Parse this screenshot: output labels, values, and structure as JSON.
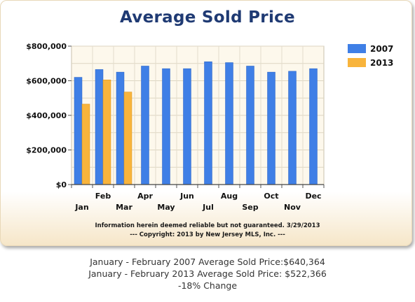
{
  "chart_data": {
    "type": "bar",
    "title": "Average Sold Price",
    "categories": [
      "Jan",
      "Feb",
      "Mar",
      "Apr",
      "May",
      "Jun",
      "Jul",
      "Aug",
      "Sep",
      "Oct",
      "Nov",
      "Dec"
    ],
    "series": [
      {
        "name": "2007",
        "color": "#3f7fe6",
        "values": [
          620000,
          665000,
          650000,
          685000,
          670000,
          670000,
          710000,
          705000,
          685000,
          650000,
          655000,
          670000
        ]
      },
      {
        "name": "2013",
        "color": "#f8b43c",
        "values": [
          465000,
          605000,
          535000,
          null,
          null,
          null,
          null,
          null,
          null,
          null,
          null,
          null
        ]
      }
    ],
    "y_ticks": [
      "$0",
      "$200,000",
      "$400,000",
      "$600,000",
      "$800,000"
    ],
    "ylim": [
      0,
      800000
    ],
    "grid": true,
    "legend": "right"
  },
  "notes": {
    "disclaimer": "Information herein deemed reliable but not guaranteed. 3/29/2013",
    "copyright": "--- Copyright: 2013 by New Jersey MLS, Inc. ---"
  },
  "summary": {
    "line1": "January - February 2007 Average Sold Price:$640,364",
    "line2": "January - February 2013 Average Sold Price: $522,366",
    "line3": "-18% Change"
  }
}
